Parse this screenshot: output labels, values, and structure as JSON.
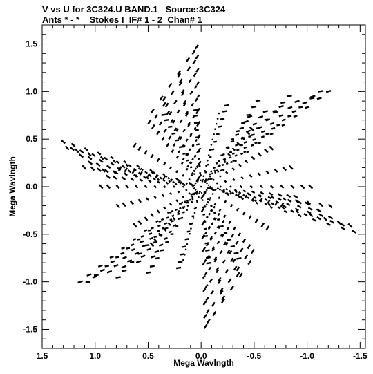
{
  "header": {
    "line1": "V vs U for 3C324.U BAND.1   Source:3C324",
    "line2": "Ants * - *    Stokes I  IF# 1 - 2  Chan# 1"
  },
  "chart_data": {
    "type": "scatter",
    "title": "V vs U for 3C324.U BAND.1   Source:3C324",
    "subtitle": "Ants * - *    Stokes I  IF# 1 - 2  Chan# 1",
    "xlabel": "Mega Wavlngth",
    "ylabel": "Mega Wavlngth",
    "xlim": [
      1.5,
      -1.55
    ],
    "ylim": [
      -1.7,
      1.7
    ],
    "x_reversed": true,
    "x_ticks": [
      1.5,
      1.0,
      0.5,
      0.0,
      -0.5,
      -1.0,
      -1.5
    ],
    "x_tick_labels": [
      "1.5",
      "1.0",
      "0.5",
      "0.0",
      "-0.5",
      "-1.0",
      "-1.5"
    ],
    "y_ticks": [
      1.5,
      1.0,
      0.5,
      0.0,
      -0.5,
      -1.0,
      -1.5
    ],
    "y_tick_labels": [
      "1.5",
      "1.0",
      "0.5",
      "0.0",
      "-0.5",
      "-1.0",
      "-1.5"
    ],
    "grid": false,
    "marker_color": "#000000",
    "description_of_points": "six-armed star-shaped uv coverage; each baseline traces a short arc, mirrored through origin",
    "arm_tips_u_v": [
      [
        0.0,
        1.6
      ],
      [
        -1.33,
        1.07
      ],
      [
        -1.56,
        -0.53
      ],
      [
        0.0,
        -1.6
      ],
      [
        1.26,
        -1.07
      ],
      [
        1.4,
        0.53
      ]
    ],
    "notch_points_u_v": [
      [
        0.52,
        0.76
      ],
      [
        -0.4,
        0.74
      ],
      [
        -0.87,
        -0.07
      ],
      [
        -0.52,
        -0.76
      ],
      [
        0.4,
        -0.74
      ],
      [
        0.87,
        0.07
      ]
    ]
  }
}
